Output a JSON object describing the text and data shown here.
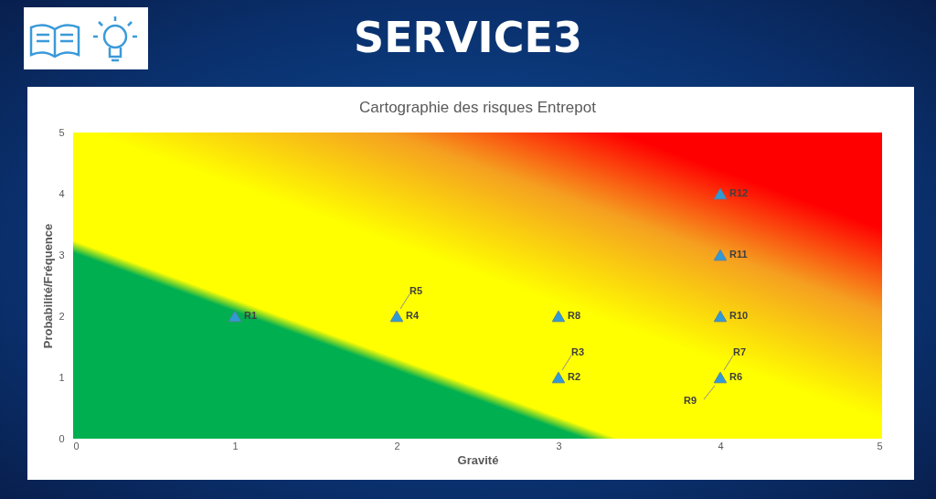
{
  "chart_data": {
    "type": "scatter",
    "title": "Cartographie des risques Entrepot",
    "xlabel": "Gravité",
    "ylabel": "Probabilité/Fréquence",
    "x": [
      1,
      2,
      3,
      3,
      4,
      4,
      4,
      4
    ],
    "values": [
      2,
      2,
      2,
      1,
      4,
      3,
      2,
      1
    ],
    "color": "#2e9bd6",
    "marker": "triangle",
    "grid": false,
    "xlim": [
      0,
      5
    ],
    "ylim": [
      0,
      5
    ],
    "xticks": [
      0,
      1,
      2,
      3,
      4,
      5
    ],
    "yticks": [
      0,
      1,
      2,
      3,
      4,
      5
    ],
    "annotations": [
      "SERVICE3",
      {
        "text": "R1",
        "x": 1,
        "y": 2
      },
      {
        "text": "R4",
        "x": 2,
        "y": 2
      },
      {
        "text": "R5",
        "x": 2,
        "y": 2
      },
      {
        "text": "R8",
        "x": 3,
        "y": 2
      },
      {
        "text": "R2",
        "x": 3,
        "y": 1
      },
      {
        "text": "R3",
        "x": 3,
        "y": 1
      },
      {
        "text": "R12",
        "x": 4,
        "y": 4
      },
      {
        "text": "R11",
        "x": 4,
        "y": 3
      },
      {
        "text": "R10",
        "x": 4,
        "y": 2
      },
      {
        "text": "R6",
        "x": 4,
        "y": 1
      },
      {
        "text": "R7",
        "x": 4,
        "y": 1
      },
      {
        "text": "R9",
        "x": 4,
        "y": 1
      }
    ]
  }
}
